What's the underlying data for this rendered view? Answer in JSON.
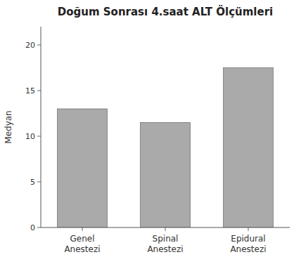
{
  "chart_data": {
    "type": "bar",
    "title": "Doğum Sonrası 4.saat ALT Ölçümleri",
    "ylabel": "Medyan",
    "categories": [
      "Genel\nAnestezi",
      "Spinal\nAnestezi",
      "Epidural\nAnestezi"
    ],
    "values": [
      13.0,
      11.5,
      17.5
    ],
    "color": "#aaaaaa",
    "ylim": [
      0,
      22
    ],
    "yticks": [
      0,
      5,
      10,
      15,
      20
    ],
    "grid": false
  }
}
